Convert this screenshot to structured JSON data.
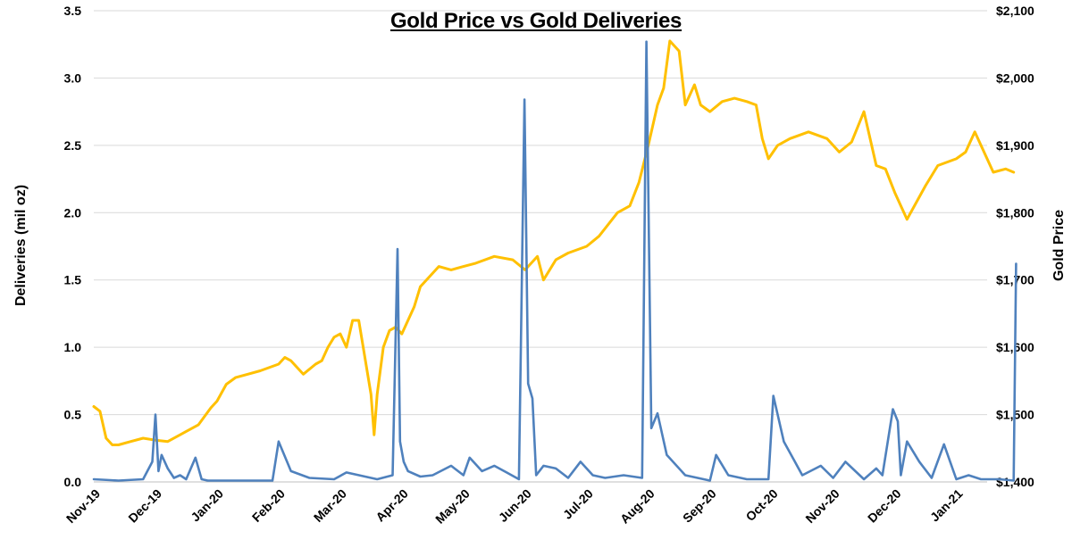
{
  "chart_data": {
    "type": "line",
    "title": "Gold Price vs Gold Deliveries",
    "ylabel": "Deliveries (mil oz)",
    "y2label": "Gold Price",
    "ylim": [
      0,
      3.5
    ],
    "y2lim": [
      1400,
      2100
    ],
    "yticks": [
      "0.0",
      "0.5",
      "1.0",
      "1.5",
      "2.0",
      "2.5",
      "3.0",
      "3.5"
    ],
    "y2ticks": [
      "$1,400",
      "$1,500",
      "$1,600",
      "$1,700",
      "$1,800",
      "$1,900",
      "$2,000",
      "$2,100"
    ],
    "categories": [
      "Nov-19",
      "Dec-19",
      "Jan-20",
      "Feb-20",
      "Mar-20",
      "Apr-20",
      "May-20",
      "Jun-20",
      "Jul-20",
      "Aug-20",
      "Sep-20",
      "Oct-20",
      "Nov-20",
      "Dec-20",
      "Jan-21"
    ],
    "grid": true,
    "series": [
      {
        "name": "Deliveries",
        "axis": "left",
        "color": "#4f81bd",
        "x": [
          0,
          0.4,
          0.8,
          0.95,
          1.0,
          1.05,
          1.1,
          1.2,
          1.3,
          1.4,
          1.5,
          1.65,
          1.75,
          1.85,
          2.0,
          2.5,
          2.9,
          3.0,
          3.2,
          3.5,
          3.9,
          4.1,
          4.6,
          4.85,
          4.93,
          4.97,
          5.03,
          5.1,
          5.3,
          5.5,
          5.8,
          6.0,
          6.1,
          6.3,
          6.5,
          6.7,
          6.9,
          6.99,
          7.05,
          7.12,
          7.18,
          7.3,
          7.5,
          7.7,
          7.9,
          8.1,
          8.3,
          8.6,
          8.9,
          8.97,
          9.05,
          9.15,
          9.3,
          9.6,
          10.0,
          10.1,
          10.3,
          10.6,
          10.95,
          11.03,
          11.2,
          11.5,
          11.8,
          12.0,
          12.2,
          12.5,
          12.7,
          12.8,
          12.97,
          13.05,
          13.1,
          13.2,
          13.4,
          13.6,
          13.8,
          14.0,
          14.2,
          14.4,
          14.7,
          14.93,
          14.97
        ],
        "values": [
          0.02,
          0.01,
          0.02,
          0.15,
          0.5,
          0.08,
          0.2,
          0.1,
          0.03,
          0.05,
          0.02,
          0.18,
          0.02,
          0.01,
          0.01,
          0.01,
          0.01,
          0.3,
          0.08,
          0.03,
          0.02,
          0.07,
          0.02,
          0.05,
          1.73,
          0.3,
          0.15,
          0.08,
          0.04,
          0.05,
          0.12,
          0.05,
          0.18,
          0.08,
          0.12,
          0.07,
          0.02,
          2.84,
          0.73,
          0.62,
          0.05,
          0.12,
          0.1,
          0.03,
          0.15,
          0.05,
          0.03,
          0.05,
          0.03,
          3.27,
          0.4,
          0.51,
          0.2,
          0.05,
          0.01,
          0.2,
          0.05,
          0.02,
          0.02,
          0.64,
          0.3,
          0.05,
          0.12,
          0.03,
          0.15,
          0.02,
          0.1,
          0.05,
          0.54,
          0.45,
          0.05,
          0.3,
          0.15,
          0.03,
          0.28,
          0.02,
          0.05,
          0.02,
          0.02,
          0.01,
          1.62
        ]
      },
      {
        "name": "Gold Price",
        "axis": "right",
        "color": "#ffc000",
        "x": [
          0,
          0.1,
          0.2,
          0.3,
          0.4,
          0.6,
          0.8,
          1.0,
          1.2,
          1.4,
          1.5,
          1.7,
          1.9,
          2.0,
          2.15,
          2.3,
          2.5,
          2.7,
          3.0,
          3.1,
          3.2,
          3.4,
          3.6,
          3.7,
          3.8,
          3.9,
          4.0,
          4.1,
          4.2,
          4.3,
          4.5,
          4.55,
          4.6,
          4.7,
          4.8,
          4.9,
          5.0,
          5.2,
          5.3,
          5.6,
          5.8,
          6.0,
          6.2,
          6.5,
          6.8,
          7.0,
          7.2,
          7.3,
          7.5,
          7.7,
          8.0,
          8.2,
          8.5,
          8.7,
          8.85,
          9.0,
          9.15,
          9.25,
          9.35,
          9.5,
          9.6,
          9.75,
          9.85,
          10.0,
          10.2,
          10.4,
          10.6,
          10.75,
          10.85,
          10.95,
          11.1,
          11.3,
          11.6,
          11.9,
          12.1,
          12.3,
          12.5,
          12.7,
          12.85,
          13.0,
          13.2,
          13.5,
          13.7,
          14.0,
          14.15,
          14.3,
          14.6,
          14.8,
          14.93
        ],
        "values": [
          1512,
          1505,
          1465,
          1455,
          1455,
          1460,
          1465,
          1462,
          1460,
          1470,
          1475,
          1485,
          1510,
          1520,
          1545,
          1555,
          1560,
          1565,
          1575,
          1585,
          1580,
          1560,
          1575,
          1580,
          1600,
          1615,
          1620,
          1600,
          1640,
          1640,
          1530,
          1470,
          1530,
          1600,
          1625,
          1630,
          1620,
          1660,
          1690,
          1720,
          1715,
          1720,
          1725,
          1735,
          1730,
          1715,
          1735,
          1700,
          1730,
          1740,
          1750,
          1765,
          1800,
          1810,
          1845,
          1900,
          1960,
          1985,
          2055,
          2040,
          1960,
          1990,
          1960,
          1950,
          1965,
          1970,
          1965,
          1960,
          1910,
          1880,
          1900,
          1910,
          1920,
          1910,
          1890,
          1905,
          1950,
          1870,
          1865,
          1830,
          1790,
          1840,
          1870,
          1880,
          1890,
          1920,
          1860,
          1865,
          1860
        ]
      }
    ]
  }
}
